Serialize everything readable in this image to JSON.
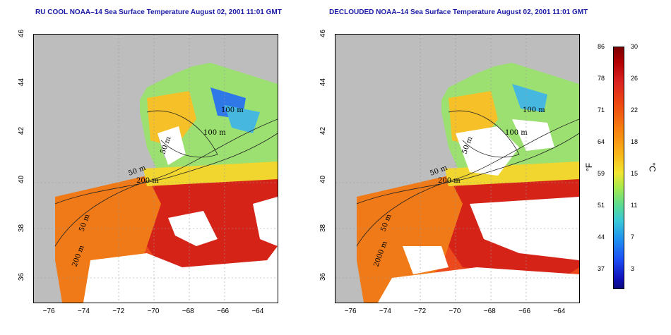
{
  "left_panel": {
    "title": "RU COOL NOAA–14 Sea Surface Temperature August 02, 2001 11:01 GMT",
    "labels": [
      "100 m",
      "100 m",
      "50 m",
      "200 m",
      "50 m",
      "50 m",
      "200 m"
    ]
  },
  "right_panel": {
    "title": "DECLOUDED NOAA–14 Sea Surface Temperature August 02, 2001 11:01 GMT",
    "labels": [
      "100 m",
      "100 m",
      "50 m",
      "200 m",
      "50 m",
      "50 m",
      "2000 m"
    ]
  },
  "axes": {
    "x_ticks": [
      "−76",
      "−74",
      "−72",
      "−70",
      "−68",
      "−66",
      "−64"
    ],
    "y_ticks": [
      "46",
      "44",
      "42",
      "40",
      "38",
      "36"
    ],
    "lon_range": [
      -77,
      -63
    ],
    "lat_range": [
      35,
      46
    ]
  },
  "colorbar": {
    "fahrenheit_ticks": [
      "86",
      "78",
      "71",
      "64",
      "59",
      "51",
      "44",
      "37"
    ],
    "celsius_ticks": [
      "30",
      "26",
      "22",
      "18",
      "15",
      "11",
      "7",
      "3"
    ],
    "fahrenheit_unit": "°F",
    "celsius_unit": "°C",
    "range_c": [
      0,
      30
    ]
  },
  "colors": {
    "land": "#bdbdbd",
    "cloud": "#ffffff",
    "warm": "#e8321a",
    "hot": "#d41c14",
    "mid": "#f07a18",
    "cool": "#8adf6a",
    "cold": "#2d8ae6",
    "title": "#1a1aa6"
  }
}
